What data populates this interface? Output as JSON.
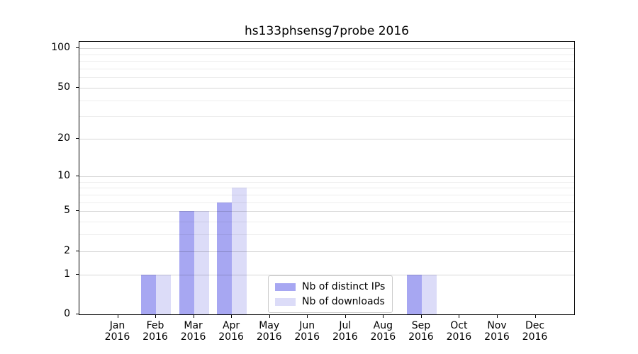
{
  "title": "hs133phsensg7probe 2016",
  "chart_data": {
    "type": "bar",
    "title": "hs133phsensg7probe 2016",
    "categories": [
      "Jan",
      "Feb",
      "Mar",
      "Apr",
      "May",
      "Jun",
      "Jul",
      "Aug",
      "Sep",
      "Oct",
      "Nov",
      "Dec"
    ],
    "category_year": "2016",
    "series": [
      {
        "name": "Nb of distinct IPs",
        "color": "#a7a7f2",
        "values": [
          0,
          1,
          5,
          6,
          0,
          0,
          0,
          0,
          1,
          0,
          0,
          0
        ]
      },
      {
        "name": "Nb of downloads",
        "color": "#dcdcf8",
        "values": [
          0,
          1,
          5,
          8,
          0,
          0,
          0,
          0,
          1,
          0,
          0,
          0
        ]
      }
    ],
    "xlabel": "",
    "ylabel": "",
    "yscale": "log1p",
    "ylim": [
      0,
      112
    ],
    "y_major_ticks": [
      0,
      1,
      2,
      5,
      10,
      20,
      50,
      100
    ],
    "y_minor_ticks": [
      3,
      4,
      6,
      7,
      8,
      9,
      30,
      40,
      60,
      70,
      80,
      90
    ],
    "grid": "horizontal",
    "legend_position": "lower center"
  },
  "legend": {
    "items": [
      {
        "label": "Nb of distinct IPs",
        "color": "#a7a7f2"
      },
      {
        "label": "Nb of downloads",
        "color": "#dcdcf8"
      }
    ]
  },
  "colors": {
    "bar_distinct_ips": "#a7a7f2",
    "bar_downloads": "#dcdcf8",
    "spine": "#000000",
    "major_grid": "rgba(0,0,0,0.16)",
    "minor_grid": "rgba(0,0,0,0.07)"
  }
}
